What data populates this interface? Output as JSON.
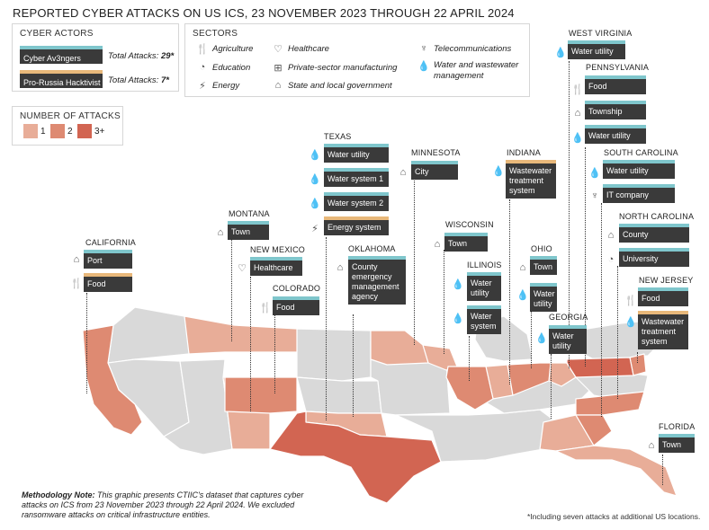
{
  "title": "REPORTED CYBER ATTACKS ON US ICS, 23 NOVEMBER 2023 THROUGH 22 APRIL 2024",
  "actors": {
    "heading": "CYBER ACTORS",
    "items": [
      {
        "name": "Cyber Av3ngers",
        "total_label": "Total Attacks:",
        "total": "29*",
        "color": "#7fc6cc"
      },
      {
        "name": "Pro-Russia Hacktivist",
        "total_label": "Total Attacks:",
        "total": "7*",
        "color": "#e8b87a"
      }
    ]
  },
  "sectors": {
    "heading": "SECTORS",
    "items": [
      {
        "label": "Agriculture",
        "icon": "agriculture-icon"
      },
      {
        "label": "Education",
        "icon": "education-icon"
      },
      {
        "label": "Energy",
        "icon": "energy-icon"
      },
      {
        "label": "Healthcare",
        "icon": "healthcare-icon"
      },
      {
        "label": "Private-sector manufacturing",
        "icon": "manufacturing-icon"
      },
      {
        "label": "State and local government",
        "icon": "government-icon"
      },
      {
        "label": "Telecommunications",
        "icon": "telecom-icon"
      },
      {
        "label": "Water and wastewater management",
        "icon": "water-icon"
      }
    ]
  },
  "legend": {
    "heading": "NUMBER OF ATTACKS",
    "items": [
      {
        "label": "1",
        "color": "#e8ad98"
      },
      {
        "label": "2",
        "color": "#de8a72"
      },
      {
        "label": "3+",
        "color": "#d26552"
      }
    ]
  },
  "states": {
    "california": {
      "name": "CALIFORNIA",
      "attacks": [
        "Port",
        "Food"
      ]
    },
    "montana": {
      "name": "MONTANA",
      "attacks": [
        "Town"
      ]
    },
    "new_mexico": {
      "name": "NEW MEXICO",
      "attacks": [
        "Healthcare"
      ]
    },
    "colorado": {
      "name": "COLORADO",
      "attacks": [
        "Food"
      ]
    },
    "texas": {
      "name": "TEXAS",
      "attacks": [
        "Water utility",
        "Water system 1",
        "Water system 2",
        "Energy system"
      ]
    },
    "oklahoma": {
      "name": "OKLAHOMA",
      "attacks": [
        "County emergency management agency"
      ]
    },
    "minnesota": {
      "name": "MINNESOTA",
      "attacks": [
        "City"
      ]
    },
    "wisconsin": {
      "name": "WISCONSIN",
      "attacks": [
        "Town"
      ]
    },
    "illinois": {
      "name": "ILLINOIS",
      "attacks": [
        "Water utility",
        "Water system"
      ]
    },
    "indiana": {
      "name": "INDIANA",
      "attacks": [
        "Wastewater treatment system"
      ]
    },
    "ohio": {
      "name": "OHIO",
      "attacks": [
        "Town",
        "Water utility"
      ]
    },
    "georgia": {
      "name": "GEORGIA",
      "attacks": [
        "Water utility"
      ]
    },
    "west_virginia": {
      "name": "WEST VIRGINIA",
      "attacks": [
        "Water utility"
      ]
    },
    "pennsylvania": {
      "name": "PENNSYLVANIA",
      "attacks": [
        "Food",
        "Township",
        "Water utility"
      ]
    },
    "south_carolina": {
      "name": "SOUTH CAROLINA",
      "attacks": [
        "Water utility",
        "IT company"
      ]
    },
    "north_carolina": {
      "name": "NORTH CAROLINA",
      "attacks": [
        "County",
        "University"
      ]
    },
    "new_jersey": {
      "name": "NEW JERSEY",
      "attacks": [
        "Food",
        "Wastewater treatment system"
      ]
    },
    "florida": {
      "name": "FLORIDA",
      "attacks": [
        "Town"
      ]
    }
  },
  "methodology": {
    "label": "Methodology Note:",
    "text": "This graphic presents CTIIC's dataset that captures cyber attacks on ICS from 23 November 2023 through 22 April 2024. We excluded ransomware attacks on critical infrastructure entities."
  },
  "footnote": "*Including seven attacks at additional US locations.",
  "colors": {
    "base": "#d9d9d9",
    "level1": "#e8ad98",
    "level2": "#de8a72",
    "level3": "#d26552",
    "tag_bg": "#3a3a3a",
    "cyber_av3ngers": "#7fc6cc",
    "pro_russia": "#e8b87a"
  }
}
